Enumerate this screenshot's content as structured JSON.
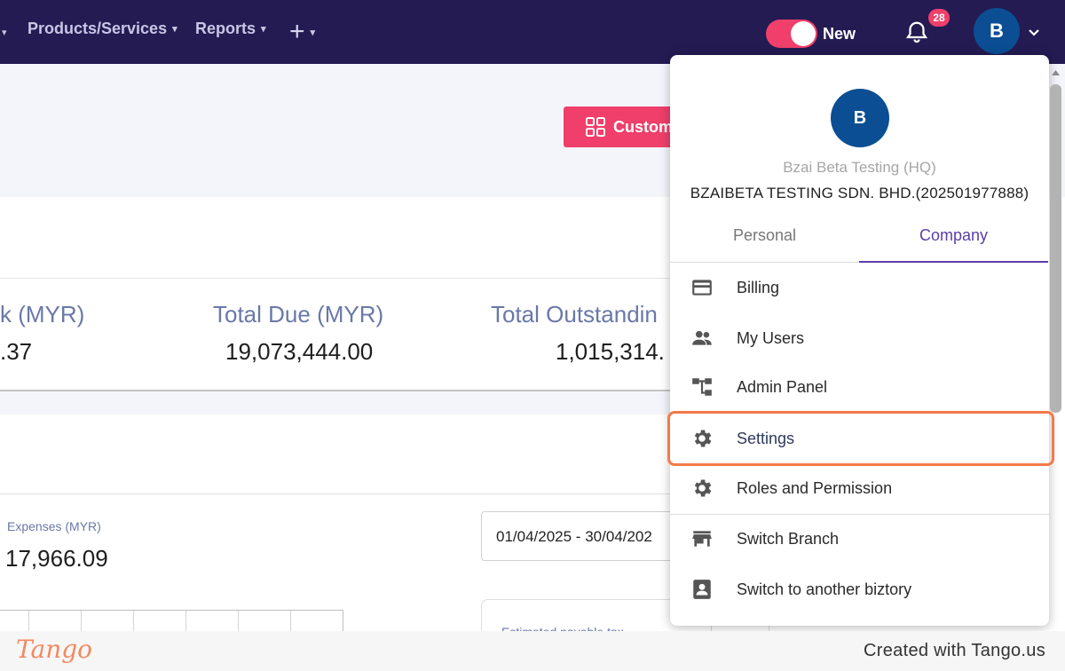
{
  "nav": {
    "items": [
      {
        "label": "Products/Services"
      },
      {
        "label": "Reports"
      }
    ],
    "toggle_label": "New",
    "notification_count": "28",
    "avatar_letter": "B"
  },
  "page": {
    "customize_label": "Custom",
    "stats": [
      {
        "label": "k (MYR)",
        "value": ".37"
      },
      {
        "label": "Total Due (MYR)",
        "value": "19,073,444.00"
      },
      {
        "label": "Total Outstandin",
        "value": "1,015,314."
      }
    ],
    "expenses_label": "Expenses (MYR)",
    "expenses_value": "17,966.09",
    "date_range": "01/04/2025 - 30/04/202",
    "estimated_label": "Estimated payable tax"
  },
  "dropdown": {
    "avatar_letter": "B",
    "user_name": "Bzai Beta Testing (HQ)",
    "company_name": "BZAIBETA TESTING SDN. BHD.(202501977888)",
    "tabs": [
      {
        "label": "Personal"
      },
      {
        "label": "Company"
      }
    ],
    "active_tab": "Company",
    "items": [
      {
        "label": "Billing",
        "icon": "credit-card-icon"
      },
      {
        "label": "My Users",
        "icon": "users-icon"
      },
      {
        "label": "Admin Panel",
        "icon": "hierarchy-icon"
      },
      {
        "label": "Settings",
        "icon": "gear-icon"
      },
      {
        "label": "Roles and Permission",
        "icon": "gear-icon"
      },
      {
        "label": "Switch Branch",
        "icon": "store-icon"
      },
      {
        "label": "Switch to another biztory",
        "icon": "contact-icon"
      }
    ],
    "highlighted_item": "Settings"
  },
  "colors": {
    "nav_bg": "#231b52",
    "accent_pink": "#ef3f6a",
    "avatar_blue": "#0b4e93",
    "tab_active": "#5a3ea8",
    "highlight": "#f37a4a"
  },
  "footer": {
    "logo": "Tango",
    "credit": "Created with Tango.us"
  }
}
